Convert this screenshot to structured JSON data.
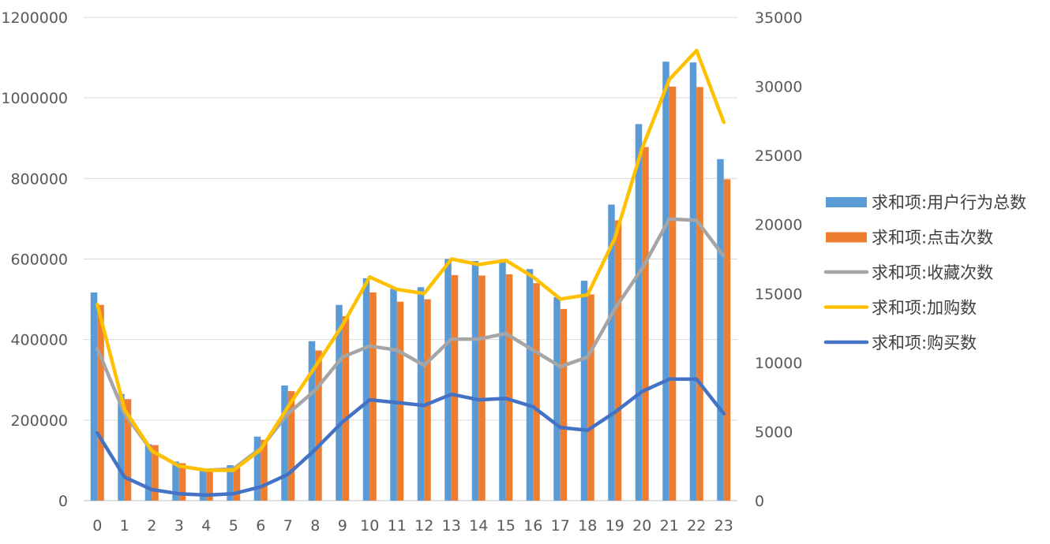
{
  "chart_data": {
    "type": "bar",
    "categories": [
      "0",
      "1",
      "2",
      "3",
      "4",
      "5",
      "6",
      "7",
      "8",
      "9",
      "10",
      "11",
      "12",
      "13",
      "14",
      "15",
      "16",
      "17",
      "18",
      "19",
      "20",
      "21",
      "22",
      "23"
    ],
    "left_axis": {
      "min": 0,
      "max": 1200000,
      "step": 200000,
      "ticks": [
        "0",
        "200000",
        "400000",
        "600000",
        "800000",
        "1000000",
        "1200000"
      ]
    },
    "right_axis": {
      "min": 0,
      "max": 35000,
      "step": 5000,
      "ticks": [
        "0",
        "5000",
        "10000",
        "15000",
        "20000",
        "25000",
        "30000",
        "35000"
      ]
    },
    "bar_series": [
      {
        "name": "求和项:用户行为总数",
        "color": "#5B9BD5",
        "axis": "left",
        "values": [
          517000,
          265000,
          140000,
          97000,
          77000,
          88000,
          159000,
          286000,
          396000,
          486000,
          552000,
          526000,
          530000,
          600000,
          595000,
          597000,
          575000,
          505000,
          546000,
          735000,
          935000,
          1090000,
          1088000,
          848000
        ]
      },
      {
        "name": "求和项:点击次数",
        "color": "#ED7D31",
        "axis": "left",
        "values": [
          486000,
          252000,
          138000,
          93000,
          74000,
          83000,
          151000,
          272000,
          373000,
          458000,
          517000,
          494000,
          500000,
          560000,
          559000,
          562000,
          540000,
          476000,
          512000,
          696000,
          878000,
          1028000,
          1027000,
          798000
        ]
      }
    ],
    "line_series": [
      {
        "name": "求和项:收藏次数",
        "color": "#A5A5A5",
        "axis": "right",
        "values": [
          11000,
          6300,
          3600,
          2500,
          2200,
          2300,
          3800,
          6300,
          8000,
          10400,
          11200,
          10900,
          9800,
          11700,
          11700,
          12100,
          10900,
          9700,
          10400,
          13900,
          16800,
          20400,
          20300,
          17700
        ]
      },
      {
        "name": "求和项:加购数",
        "color": "#FFC000",
        "axis": "right",
        "values": [
          14200,
          6600,
          3600,
          2500,
          2200,
          2200,
          3700,
          6800,
          9700,
          12700,
          16200,
          15300,
          15000,
          17500,
          17100,
          17400,
          16200,
          14600,
          14900,
          19000,
          25500,
          30500,
          32600,
          27400
        ]
      },
      {
        "name": "求和项:购买数",
        "color": "#4472C4",
        "axis": "right",
        "values": [
          4900,
          1700,
          800,
          500,
          400,
          500,
          1000,
          1900,
          3700,
          5700,
          7300,
          7100,
          6900,
          7700,
          7300,
          7400,
          6800,
          5300,
          5100,
          6400,
          7900,
          8800,
          8800,
          6300
        ]
      }
    ],
    "legend": [
      "求和项:用户行为总数",
      "求和项:点击次数",
      "求和项:收藏次数",
      "求和项:加购数",
      "求和项:购买数"
    ],
    "legend_position": "right",
    "grid": true
  }
}
